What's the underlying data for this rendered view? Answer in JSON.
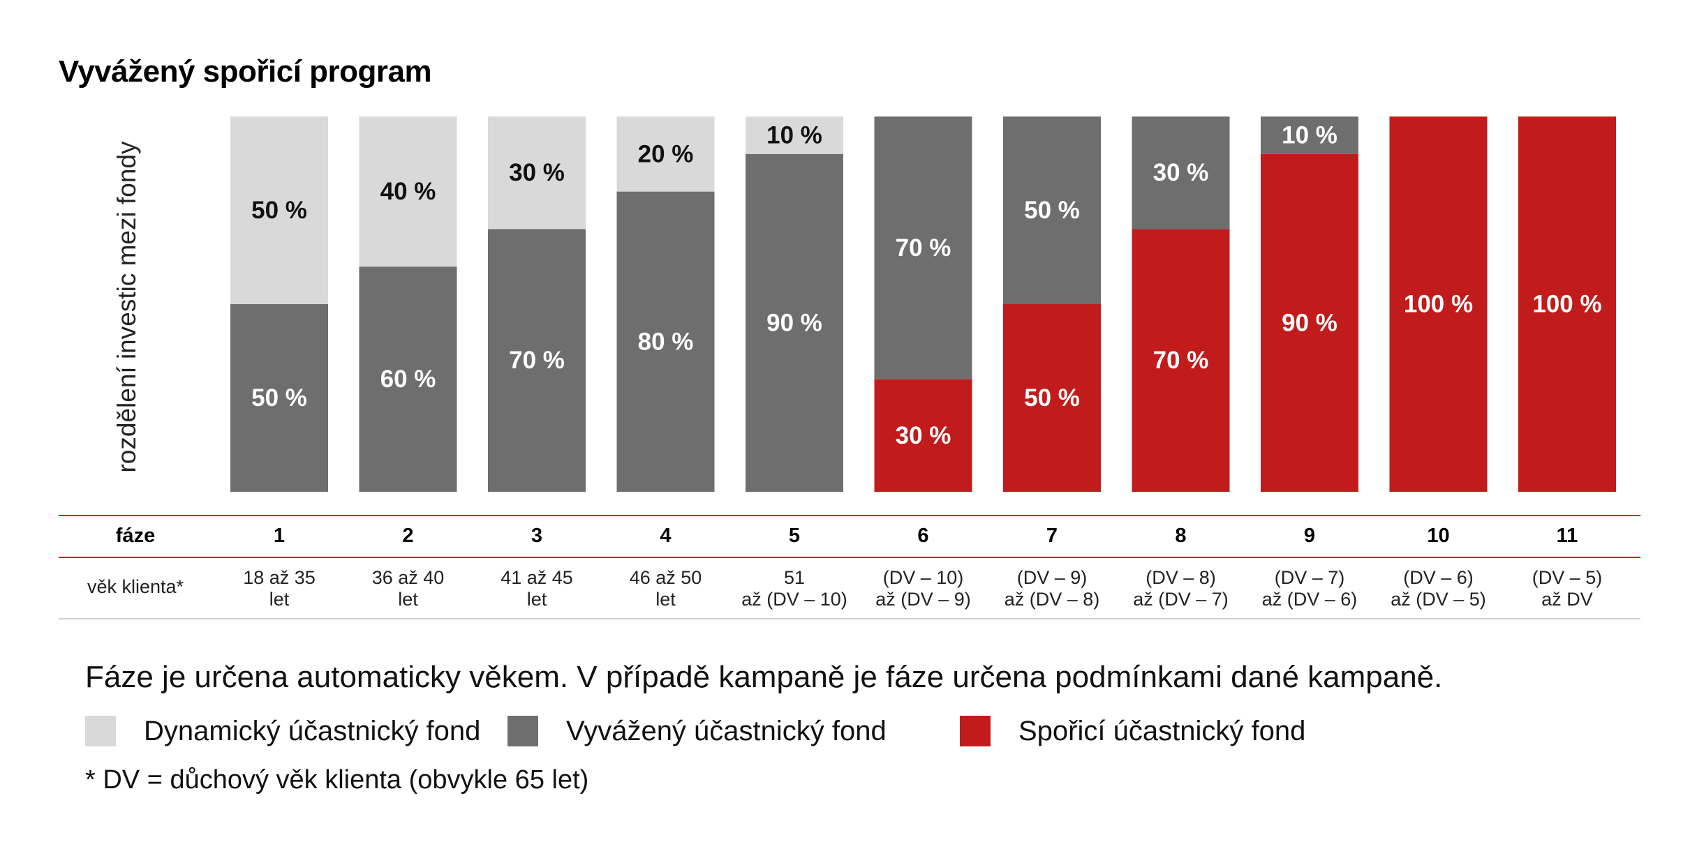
{
  "title": "Vyvážený spořicí program",
  "note": "Fáze je určena automaticky věkem. V případě kampaně je fáze určena podmínkami dané kampaně.",
  "footnote": "* DV = důchový věk klienta (obvykle 65 let)",
  "table": {
    "phase_header": "fáze",
    "age_header": "věk klienta*",
    "ages": [
      [
        "18 až 35",
        "let"
      ],
      [
        "36 až 40",
        "let"
      ],
      [
        "41 až 45",
        "let"
      ],
      [
        "46 až 50",
        "let"
      ],
      [
        "51",
        "až (DV – 10)"
      ],
      [
        "(DV – 10)",
        "až (DV – 9)"
      ],
      [
        "(DV – 9)",
        "až (DV – 8)"
      ],
      [
        "(DV – 8)",
        "až (DV – 7)"
      ],
      [
        "(DV – 7)",
        "až (DV – 6)"
      ],
      [
        "(DV – 6)",
        "až (DV – 5)"
      ],
      [
        "(DV – 5)",
        "až DV"
      ]
    ]
  },
  "colors": {
    "dynamic": "#d9d9d9",
    "balanced": "#6e6e6e",
    "saving": "#c11b1b",
    "accent_line": "#c0272d"
  },
  "chart_data": {
    "type": "bar",
    "stacked": true,
    "title": "Vyvážený spořicí program",
    "xlabel": "fáze",
    "ylabel": "rozdělení investic mezi fondy",
    "unit": "%",
    "ylim": [
      0,
      100
    ],
    "grid": false,
    "legend_position": "bottom",
    "categories": [
      "1",
      "2",
      "3",
      "4",
      "5",
      "6",
      "7",
      "8",
      "9",
      "10",
      "11"
    ],
    "series": [
      {
        "name": "Spořicí účastnický fond",
        "color_key": "saving",
        "values": [
          0,
          0,
          0,
          0,
          0,
          30,
          50,
          70,
          90,
          100,
          100
        ]
      },
      {
        "name": "Vyvážený účastnický fond",
        "color_key": "balanced",
        "values": [
          50,
          60,
          70,
          80,
          90,
          70,
          50,
          30,
          10,
          0,
          0
        ]
      },
      {
        "name": "Dynamický účastnický fond",
        "color_key": "dynamic",
        "values": [
          50,
          40,
          30,
          20,
          10,
          0,
          0,
          0,
          0,
          0,
          0
        ]
      }
    ]
  }
}
